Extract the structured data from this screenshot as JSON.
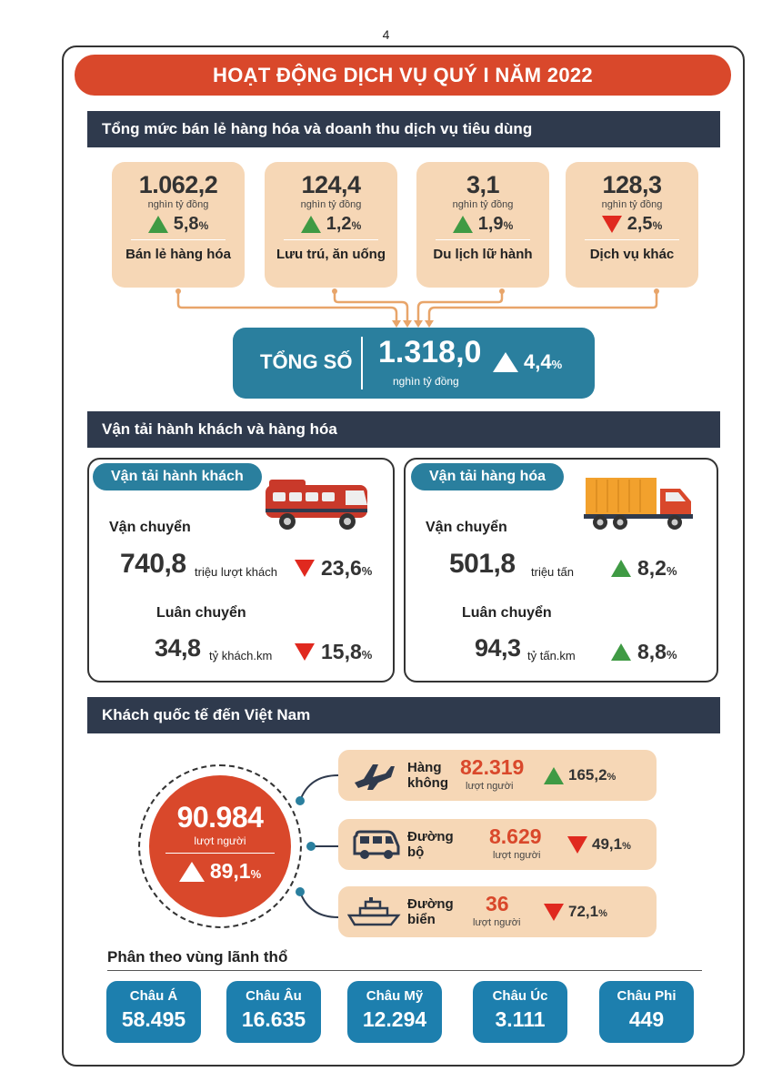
{
  "page_number": "4",
  "title": "HOẠT ĐỘNG DỊCH VỤ QUÝ I NĂM 2022",
  "retail": {
    "heading": "Tổng mức bán lẻ hàng hóa và doanh thu dịch vụ tiêu dùng",
    "cards": [
      {
        "value": "1.062,2",
        "unit": "nghìn tỷ đồng",
        "direction": "up",
        "change": "5,8",
        "label": "Bán lẻ hàng hóa"
      },
      {
        "value": "124,4",
        "unit": "nghìn tỷ đồng",
        "direction": "up",
        "change": "1,2",
        "label": "Lưu trú, ăn uống"
      },
      {
        "value": "3,1",
        "unit": "nghìn tỷ đồng",
        "direction": "up",
        "change": "1,9",
        "label": "Du lịch lữ hành"
      },
      {
        "value": "128,3",
        "unit": "nghìn tỷ đồng",
        "direction": "down",
        "change": "2,5",
        "label": "Dịch vụ khác"
      }
    ],
    "percent_sign": "%",
    "total": {
      "label": "TỔNG SỐ",
      "value": "1.318,0",
      "unit": "nghìn tỷ đồng",
      "direction": "up",
      "change": "4,4"
    }
  },
  "transport": {
    "heading": "Vận tải hành khách và hàng hóa",
    "passenger": {
      "title": "Vận tải hành khách",
      "carry_label": "Vận chuyển",
      "carry_value": "740,8",
      "carry_unit": "triệu lượt khách",
      "carry_direction": "down",
      "carry_change": "23,6",
      "rotate_label": "Luân chuyển",
      "rotate_value": "34,8",
      "rotate_unit": "tỷ khách.km",
      "rotate_direction": "down",
      "rotate_change": "15,8"
    },
    "freight": {
      "title": "Vận tải hàng hóa",
      "carry_label": "Vận chuyển",
      "carry_value": "501,8",
      "carry_unit": "triệu tấn",
      "carry_direction": "up",
      "carry_change": "8,2",
      "rotate_label": "Luân chuyển",
      "rotate_value": "94,3",
      "rotate_unit": "tỷ tấn.km",
      "rotate_direction": "up",
      "rotate_change": "8,8"
    }
  },
  "visitors": {
    "heading": "Khách quốc tế đến Việt Nam",
    "total_value": "90.984",
    "total_unit": "lượt người",
    "total_direction": "up",
    "total_change": "89,1",
    "modes": [
      {
        "name_line1": "Hàng",
        "name_line2": "không",
        "icon": "airplane-icon",
        "value": "82.319",
        "unit": "lượt người",
        "direction": "up",
        "change": "165,2"
      },
      {
        "name_line1": "Đường",
        "name_line2": "bộ",
        "icon": "van-icon",
        "value": "8.629",
        "unit": "lượt người",
        "direction": "down",
        "change": "49,1"
      },
      {
        "name_line1": "Đường",
        "name_line2": "biển",
        "icon": "ship-icon",
        "value": "36",
        "unit": "lượt người",
        "direction": "down",
        "change": "72,1"
      }
    ],
    "region_heading": "Phân theo vùng lãnh thổ",
    "regions": [
      {
        "name": "Châu Á",
        "value": "58.495"
      },
      {
        "name": "Châu Âu",
        "value": "16.635"
      },
      {
        "name": "Châu Mỹ",
        "value": "12.294"
      },
      {
        "name": "Châu Úc",
        "value": "3.111"
      },
      {
        "name": "Châu Phi",
        "value": "449"
      }
    ]
  },
  "colors": {
    "accent_red": "#d9482b",
    "teal": "#2a7f9e",
    "dark_navy": "#2f3a4d",
    "peach": "#f6d7b6",
    "up_green": "#3f9a44",
    "down_red": "#e0291f",
    "region_blue": "#1d7fae"
  }
}
